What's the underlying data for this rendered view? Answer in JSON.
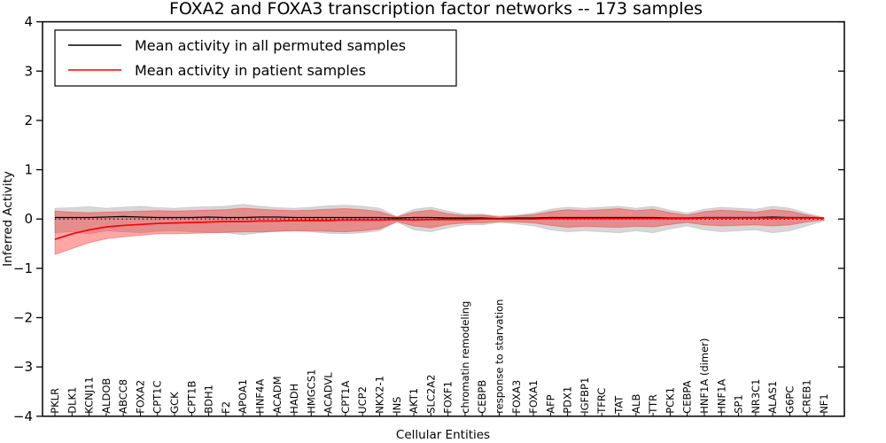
{
  "figure": {
    "title": "FOXA2 and FOXA3 transcription factor networks -- 173 samples",
    "xlabel": "Cellular Entities",
    "ylabel": "Inferred Activity"
  },
  "legend": {
    "entries": [
      {
        "label": "Mean activity in all permuted samples",
        "color": "#000000"
      },
      {
        "label": "Mean activity in patient samples",
        "color": "#ff0000"
      }
    ]
  },
  "colors": {
    "permuted_line": "#000000",
    "patient_line": "#ff0000",
    "permuted_band": "rgba(110,110,110,0.28)",
    "patient_band": "rgba(255,0,0,0.35)",
    "axis": "#000000"
  },
  "chart_data": {
    "type": "line",
    "title": "FOXA2 and FOXA3 transcription factor networks -- 173 samples",
    "xlabel": "Cellular Entities",
    "ylabel": "Inferred Activity",
    "ylim": [
      -4,
      4
    ],
    "yticks": [
      4,
      3,
      2,
      1,
      0,
      -1,
      -2,
      -3,
      -4
    ],
    "grid": false,
    "legend_position": "upper left",
    "zero_reference_line": 0,
    "categories": [
      "PKLR",
      "DLK1",
      "KCNJ11",
      "ALDOB",
      "ABCC8",
      "FOXA2",
      "CPT1C",
      "GCK",
      "CPT1B",
      "BDH1",
      "F2",
      "APOA1",
      "HNF4A",
      "ACADM",
      "HADH",
      "HMGCS1",
      "ACADVL",
      "CPT1A",
      "UCP2",
      "NKX2-1",
      "INS",
      "AKT1",
      "SLC2A2",
      "FOXF1",
      "chromatin remodeling",
      "CEBPB",
      "response to starvation",
      "FOXA3",
      "FOXA1",
      "AFP",
      "PDX1",
      "IGFBP1",
      "TFRC",
      "TAT",
      "ALB",
      "TTR",
      "PCK1",
      "CEBPA",
      "HNF1A (dimer)",
      "HNF1A",
      "SP1",
      "NR3C1",
      "ALAS1",
      "G6PC",
      "CREB1",
      "NF1"
    ],
    "series": [
      {
        "name": "Mean activity in all permuted samples",
        "color": "#000000",
        "values": [
          0.03,
          0.03,
          0.03,
          0.04,
          0.05,
          0.04,
          0.03,
          0.03,
          0.03,
          0.04,
          0.03,
          0.03,
          0.04,
          0.04,
          0.03,
          0.03,
          0.03,
          0.03,
          0.03,
          0.03,
          0.02,
          0.03,
          0.03,
          0.02,
          0.02,
          0.02,
          0.01,
          0.02,
          0.02,
          0.03,
          0.03,
          0.03,
          0.03,
          0.03,
          0.03,
          0.03,
          0.02,
          0.02,
          0.03,
          0.03,
          0.03,
          0.03,
          0.04,
          0.03,
          0.03,
          0.02
        ]
      },
      {
        "name": "Mean activity in patient samples",
        "color": "#ff0000",
        "values": [
          -0.41,
          -0.3,
          -0.22,
          -0.16,
          -0.13,
          -0.11,
          -0.09,
          -0.08,
          -0.07,
          -0.06,
          -0.05,
          -0.05,
          -0.04,
          -0.04,
          -0.03,
          -0.03,
          -0.03,
          -0.02,
          -0.02,
          -0.02,
          -0.01,
          -0.02,
          -0.01,
          -0.01,
          -0.01,
          0.0,
          0.0,
          0.0,
          0.0,
          0.01,
          0.01,
          0.01,
          0.01,
          0.01,
          0.01,
          0.01,
          0.01,
          0.01,
          0.02,
          0.02,
          0.02,
          0.02,
          0.02,
          0.02,
          0.02,
          0.02
        ]
      }
    ],
    "bands": [
      {
        "name": "permuted samples range",
        "color": "rgba(110,110,110,0.28)",
        "edge": "rgba(0,0,0,0.10)",
        "upper": [
          0.22,
          0.23,
          0.25,
          0.22,
          0.24,
          0.26,
          0.23,
          0.22,
          0.24,
          0.25,
          0.26,
          0.3,
          0.26,
          0.23,
          0.22,
          0.24,
          0.27,
          0.28,
          0.26,
          0.22,
          0.05,
          0.2,
          0.24,
          0.16,
          0.1,
          0.1,
          0.06,
          0.08,
          0.12,
          0.2,
          0.24,
          0.22,
          0.24,
          0.26,
          0.22,
          0.26,
          0.18,
          0.12,
          0.2,
          0.24,
          0.22,
          0.2,
          0.26,
          0.22,
          0.12,
          0.03
        ],
        "lower": [
          -0.28,
          -0.26,
          -0.3,
          -0.24,
          -0.26,
          -0.28,
          -0.25,
          -0.24,
          -0.26,
          -0.27,
          -0.28,
          -0.32,
          -0.28,
          -0.25,
          -0.24,
          -0.26,
          -0.29,
          -0.3,
          -0.28,
          -0.24,
          -0.06,
          -0.22,
          -0.26,
          -0.18,
          -0.12,
          -0.12,
          -0.07,
          -0.1,
          -0.14,
          -0.22,
          -0.26,
          -0.24,
          -0.26,
          -0.28,
          -0.24,
          -0.28,
          -0.2,
          -0.14,
          -0.22,
          -0.26,
          -0.24,
          -0.22,
          -0.28,
          -0.24,
          -0.14,
          -0.04
        ]
      },
      {
        "name": "patient samples range",
        "color": "rgba(255,0,0,0.35)",
        "edge": "rgba(255,0,0,0.30)",
        "upper": [
          0.16,
          0.14,
          0.13,
          0.14,
          0.15,
          0.16,
          0.17,
          0.16,
          0.17,
          0.18,
          0.19,
          0.22,
          0.2,
          0.18,
          0.17,
          0.18,
          0.2,
          0.21,
          0.19,
          0.15,
          0.04,
          0.14,
          0.18,
          0.11,
          0.07,
          0.08,
          0.04,
          0.06,
          0.09,
          0.15,
          0.19,
          0.17,
          0.19,
          0.21,
          0.17,
          0.2,
          0.13,
          0.08,
          0.15,
          0.18,
          0.16,
          0.14,
          0.19,
          0.16,
          0.08,
          0.02
        ],
        "lower": [
          -0.72,
          -0.6,
          -0.48,
          -0.4,
          -0.36,
          -0.33,
          -0.3,
          -0.3,
          -0.29,
          -0.28,
          -0.27,
          -0.26,
          -0.26,
          -0.25,
          -0.24,
          -0.24,
          -0.25,
          -0.26,
          -0.24,
          -0.2,
          -0.05,
          -0.14,
          -0.18,
          -0.11,
          -0.08,
          -0.08,
          -0.05,
          -0.06,
          -0.08,
          -0.13,
          -0.17,
          -0.15,
          -0.16,
          -0.17,
          -0.15,
          -0.16,
          -0.11,
          -0.07,
          -0.12,
          -0.14,
          -0.13,
          -0.12,
          -0.14,
          -0.12,
          -0.06,
          -0.02
        ]
      }
    ]
  }
}
